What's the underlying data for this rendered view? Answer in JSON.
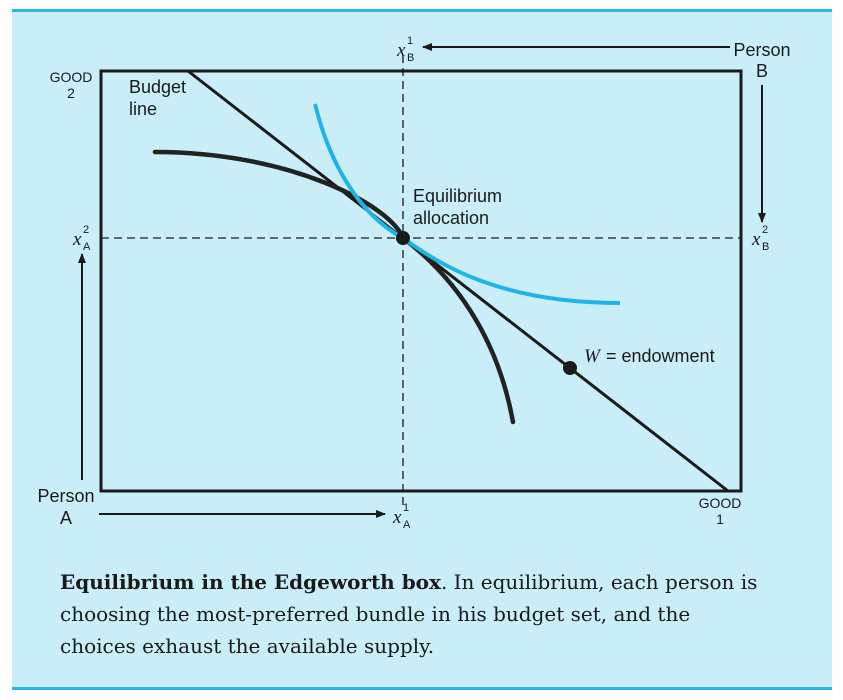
{
  "labels": {
    "good2": [
      "GOOD",
      "2"
    ],
    "good1": [
      "GOOD",
      "1"
    ],
    "budget_line": [
      "Budget",
      "line"
    ],
    "equilibrium": [
      "Equilibrium",
      "allocation"
    ],
    "person_a": [
      "Person",
      "A"
    ],
    "person_b": [
      "Person",
      "B"
    ],
    "endowment_var": "W",
    "endowment_text": "= endowment",
    "x1a": {
      "base": "x",
      "sup": "1",
      "sub": "A"
    },
    "x1b": {
      "base": "x",
      "sup": "1",
      "sub": "B"
    },
    "x2a": {
      "base": "x",
      "sup": "2",
      "sub": "A"
    },
    "x2b": {
      "base": "x",
      "sup": "2",
      "sub": "B"
    }
  },
  "colors": {
    "panel_background": "#c9eef8",
    "accent_rule": "#29b6e6",
    "indifference_curve_b": "#1fb4e8",
    "ink": "#1a1a1a"
  },
  "caption": {
    "title": "Equilibrium in the Edgeworth box",
    "text": "In equilibrium, each person is choosing the most-preferred bundle in his budget set, and the choices exhaust the available supply."
  }
}
